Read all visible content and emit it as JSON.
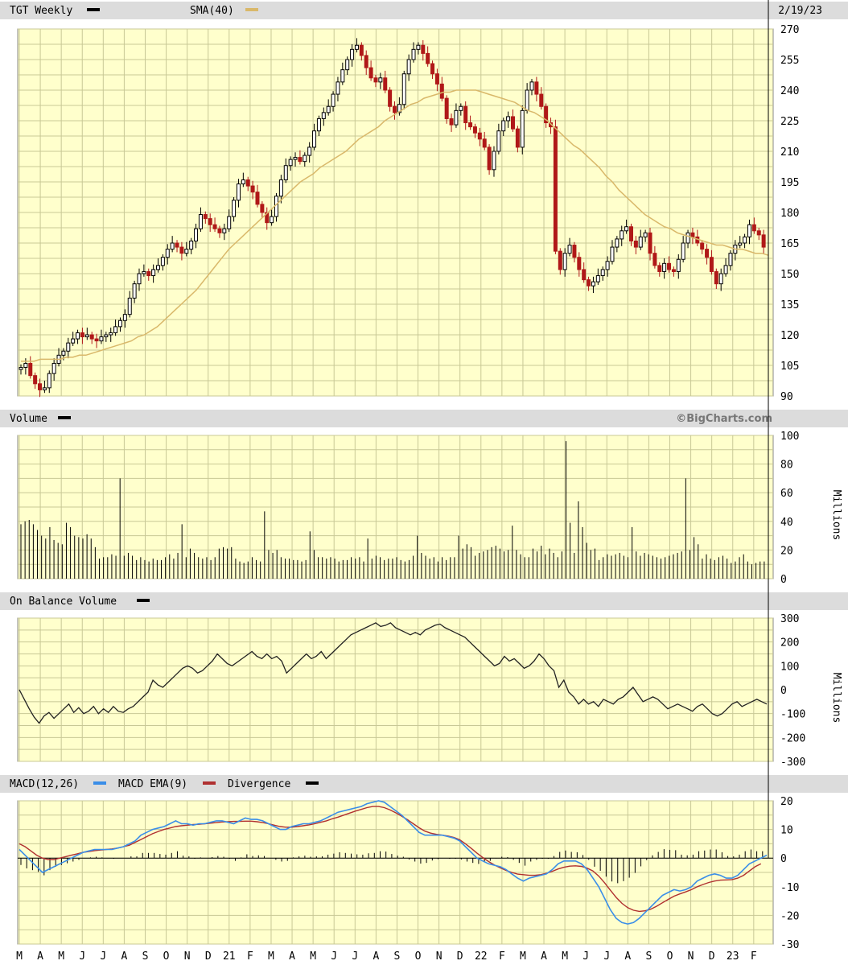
{
  "colors": {
    "frame_bg": "#ffffff",
    "header_bg": "#dcdcdc",
    "plot_bg": "#ffffcc",
    "grid": "#c8c896",
    "up_candle": "#000000",
    "down_candle": "#b01818",
    "sma": "#d9b86a",
    "macd": "#3a8ee8",
    "macd_ema": "#b03030",
    "text": "#000000"
  },
  "header": {
    "ticker_label": "TGT Weekly",
    "sma_label": "SMA(40)",
    "date_label": "2/19/23",
    "volume_label": "Volume",
    "copyright": "©BigCharts.com",
    "obv_label": "On Balance Volume",
    "macd_label": "MACD(12,26)",
    "macd_ema_label": "MACD EMA(9)",
    "divergence_label": "Divergence"
  },
  "x_axis": {
    "month_labels": [
      "M",
      "A",
      "M",
      "J",
      "J",
      "A",
      "S",
      "O",
      "N",
      "D",
      "21",
      "F",
      "M",
      "A",
      "M",
      "J",
      "J",
      "A",
      "S",
      "O",
      "N",
      "D",
      "22",
      "F",
      "M",
      "A",
      "M",
      "J",
      "J",
      "A",
      "S",
      "O",
      "N",
      "D",
      "23",
      "F"
    ]
  },
  "chart_data": [
    {
      "type": "candlestick",
      "title": "TGT Weekly",
      "legend": [
        "SMA(40)"
      ],
      "ylim": [
        90,
        270
      ],
      "yticks": [
        90,
        105,
        120,
        135,
        150,
        165,
        180,
        195,
        210,
        225,
        240,
        255,
        270
      ],
      "grid": true,
      "ohlc_close": [
        104,
        106,
        100,
        96,
        93,
        94,
        101,
        106,
        110,
        112,
        116,
        118,
        121,
        119,
        120,
        118,
        117,
        119,
        120,
        121,
        124,
        127,
        130,
        138,
        145,
        150,
        151,
        149,
        152,
        154,
        158,
        162,
        165,
        163,
        160,
        162,
        166,
        172,
        179,
        177,
        174,
        172,
        170,
        172,
        178,
        186,
        194,
        196,
        193,
        190,
        184,
        180,
        175,
        178,
        188,
        196,
        203,
        206,
        207,
        205,
        208,
        212,
        220,
        226,
        229,
        232,
        238,
        244,
        250,
        255,
        260,
        262,
        257,
        251,
        246,
        244,
        246,
        240,
        232,
        229,
        233,
        248,
        255,
        260,
        262,
        258,
        253,
        248,
        243,
        236,
        226,
        223,
        230,
        232,
        224,
        222,
        219,
        216,
        212,
        201,
        210,
        220,
        225,
        227,
        221,
        212,
        230,
        240,
        244,
        238,
        232,
        224,
        222,
        161,
        152,
        160,
        164,
        158,
        152,
        147,
        144,
        146,
        149,
        152,
        156,
        163,
        167,
        171,
        173,
        166,
        163,
        168,
        170,
        160,
        154,
        151,
        155,
        152,
        151,
        157,
        165,
        170,
        168,
        165,
        162,
        158,
        151,
        145,
        150,
        154,
        160,
        164,
        165,
        168,
        174,
        171,
        169,
        163
      ],
      "sma_40": [
        107,
        107,
        107,
        108,
        108,
        108,
        108,
        109,
        109,
        110,
        110,
        111,
        112,
        113,
        114,
        115,
        116,
        117,
        119,
        120,
        122,
        124,
        127,
        130,
        133,
        136,
        139,
        142,
        146,
        150,
        154,
        158,
        162,
        165,
        168,
        171,
        174,
        177,
        180,
        183,
        186,
        189,
        192,
        195,
        197,
        199,
        202,
        204,
        206,
        208,
        210,
        213,
        216,
        218,
        220,
        222,
        225,
        227,
        229,
        231,
        233,
        234,
        236,
        237,
        238,
        239,
        239,
        240,
        240,
        240,
        240,
        239,
        238,
        237,
        236,
        235,
        234,
        232,
        230,
        229,
        227,
        225,
        222,
        219,
        216,
        213,
        211,
        208,
        205,
        202,
        198,
        195,
        191,
        188,
        185,
        182,
        179,
        177,
        175,
        173,
        172,
        170,
        169,
        168,
        167,
        166,
        165,
        164,
        164,
        163,
        162,
        162,
        161,
        160,
        160,
        159
      ]
    },
    {
      "type": "bar",
      "title": "Volume",
      "ylabel": "Millions",
      "ylim": [
        0,
        100
      ],
      "yticks": [
        0,
        20,
        40,
        60,
        80,
        100
      ],
      "values": [
        38,
        40,
        41,
        38,
        34,
        30,
        28,
        36,
        27,
        25,
        24,
        39,
        36,
        30,
        29,
        28,
        31,
        28,
        22,
        14,
        15,
        15,
        17,
        16,
        70,
        16,
        18,
        16,
        13,
        15,
        13,
        12,
        14,
        13,
        13,
        15,
        17,
        14,
        18,
        38,
        15,
        21,
        18,
        15,
        14,
        15,
        13,
        15,
        21,
        22,
        21,
        22,
        14,
        12,
        11,
        12,
        15,
        13,
        12,
        47,
        20,
        18,
        20,
        15,
        14,
        14,
        13,
        13,
        12,
        13,
        33,
        20,
        15,
        15,
        14,
        15,
        14,
        12,
        13,
        13,
        15,
        14,
        15,
        12,
        28,
        14,
        16,
        15,
        13,
        14,
        14,
        15,
        13,
        12,
        13,
        16,
        30,
        18,
        16,
        14,
        15,
        12,
        15,
        13,
        15,
        15,
        30,
        21,
        24,
        22,
        16,
        18,
        19,
        20,
        22,
        23,
        21,
        19,
        20,
        37,
        20,
        17,
        15,
        15,
        21,
        19,
        23,
        17,
        21,
        18,
        15,
        19,
        96,
        39,
        18,
        54,
        36,
        25,
        20,
        21,
        13,
        15,
        17,
        16,
        17,
        18,
        16,
        15,
        36,
        19,
        16,
        18,
        17,
        16,
        15,
        14,
        15,
        16,
        17,
        18,
        19,
        70,
        20,
        29,
        24,
        14,
        17,
        14,
        13,
        15,
        16,
        14,
        11,
        12,
        15,
        17,
        12,
        10,
        11,
        12,
        12
      ]
    },
    {
      "type": "line",
      "title": "On Balance Volume",
      "ylabel": "Millions",
      "ylim": [
        -300,
        300
      ],
      "yticks": [
        -300,
        -200,
        -100,
        0,
        100,
        200,
        300
      ],
      "values": [
        0,
        -40,
        -80,
        -115,
        -140,
        -110,
        -95,
        -120,
        -100,
        -80,
        -60,
        -95,
        -75,
        -100,
        -90,
        -70,
        -100,
        -80,
        -95,
        -70,
        -90,
        -95,
        -80,
        -70,
        -50,
        -30,
        -10,
        40,
        20,
        10,
        30,
        50,
        70,
        90,
        100,
        90,
        70,
        80,
        100,
        120,
        150,
        130,
        110,
        100,
        115,
        130,
        145,
        160,
        140,
        130,
        150,
        130,
        140,
        120,
        70,
        90,
        110,
        130,
        150,
        130,
        140,
        160,
        130,
        150,
        170,
        190,
        210,
        230,
        240,
        250,
        260,
        270,
        280,
        265,
        270,
        280,
        260,
        250,
        240,
        230,
        240,
        230,
        250,
        260,
        270,
        275,
        260,
        250,
        240,
        230,
        220,
        200,
        180,
        160,
        140,
        120,
        100,
        110,
        140,
        120,
        130,
        110,
        90,
        100,
        120,
        150,
        130,
        100,
        80,
        10,
        40,
        -10,
        -30,
        -60,
        -40,
        -60,
        -50,
        -70,
        -40,
        -50,
        -60,
        -40,
        -30,
        -10,
        10,
        -20,
        -50,
        -40,
        -30,
        -40,
        -60,
        -80,
        -70,
        -60,
        -70,
        -80,
        -90,
        -70,
        -60,
        -80,
        -100,
        -110,
        -100,
        -80,
        -60,
        -50,
        -70,
        -60,
        -50,
        -40,
        -50,
        -60
      ]
    },
    {
      "type": "line",
      "title": "MACD(12,26)",
      "legend": [
        "MACD(12,26)",
        "MACD EMA(9)",
        "Divergence"
      ],
      "ylim": [
        -30,
        20
      ],
      "yticks": [
        -30,
        -20,
        -10,
        0,
        10,
        20
      ],
      "macd": [
        3,
        1,
        -1,
        -3,
        -5,
        -4,
        -3,
        -2,
        -1,
        0,
        1,
        2,
        2.5,
        3,
        3,
        3,
        3,
        3.5,
        4,
        5,
        6,
        8,
        9,
        10,
        10.5,
        11,
        12,
        13,
        12,
        12,
        11.5,
        12,
        12,
        12.5,
        13,
        13,
        12.5,
        12,
        13,
        14,
        13.5,
        13.5,
        13,
        12,
        11,
        10,
        10,
        11,
        11.5,
        12,
        12,
        12.5,
        13,
        14,
        15,
        16,
        16.5,
        17,
        17.5,
        18,
        19,
        19.5,
        20,
        19.5,
        18,
        16.5,
        15,
        13,
        11,
        9,
        8,
        8,
        8,
        8,
        7.5,
        7,
        6,
        4,
        2,
        0,
        -1,
        -2,
        -2.5,
        -3,
        -4,
        -5.5,
        -7,
        -8,
        -7,
        -6.5,
        -6,
        -5.5,
        -4,
        -2,
        -1,
        -1,
        -1,
        -2,
        -4,
        -7,
        -10,
        -14,
        -18,
        -21,
        -22.5,
        -23,
        -22.5,
        -21,
        -19,
        -17,
        -15,
        -13,
        -12,
        -11,
        -11.5,
        -11,
        -10,
        -8,
        -7,
        -6,
        -5.5,
        -6,
        -7,
        -7,
        -6,
        -4,
        -2,
        -1,
        0,
        1
      ],
      "macd_ema": [
        5,
        4,
        2.5,
        1,
        0,
        -0.5,
        -0.5,
        0,
        0.5,
        1,
        1.5,
        2,
        2.3,
        2.6,
        2.8,
        3,
        3.2,
        3.5,
        4,
        4.5,
        5.5,
        6.5,
        7.5,
        8.5,
        9.3,
        10,
        10.5,
        11,
        11.3,
        11.5,
        11.7,
        11.8,
        12,
        12.2,
        12.4,
        12.6,
        12.7,
        12.8,
        12.8,
        12.9,
        12.9,
        12.7,
        12.4,
        12,
        11.5,
        11,
        10.8,
        10.8,
        11,
        11.3,
        11.6,
        12,
        12.5,
        13,
        13.7,
        14.3,
        15,
        15.7,
        16.4,
        17,
        17.6,
        18,
        18,
        17.6,
        16.8,
        15.8,
        14.6,
        13.4,
        12,
        10.6,
        9.4,
        8.7,
        8.3,
        8,
        7.7,
        7.2,
        6.4,
        5,
        3.4,
        1.7,
        0.2,
        -1.2,
        -2.4,
        -3.4,
        -4.3,
        -5,
        -5.6,
        -5.8,
        -6,
        -6,
        -5.8,
        -5.3,
        -4.6,
        -3.8,
        -3.2,
        -2.8,
        -2.7,
        -2.9,
        -3.5,
        -4.5,
        -6.3,
        -8.6,
        -11.2,
        -13.7,
        -15.8,
        -17.3,
        -18.2,
        -18.6,
        -18.4,
        -17.8,
        -16.8,
        -15.6,
        -14.4,
        -13.3,
        -12.5,
        -11.8,
        -11,
        -10,
        -9.2,
        -8.5,
        -8,
        -7.7,
        -7.6,
        -7.5,
        -7,
        -6,
        -4.5,
        -3,
        -2
      ]
    }
  ]
}
